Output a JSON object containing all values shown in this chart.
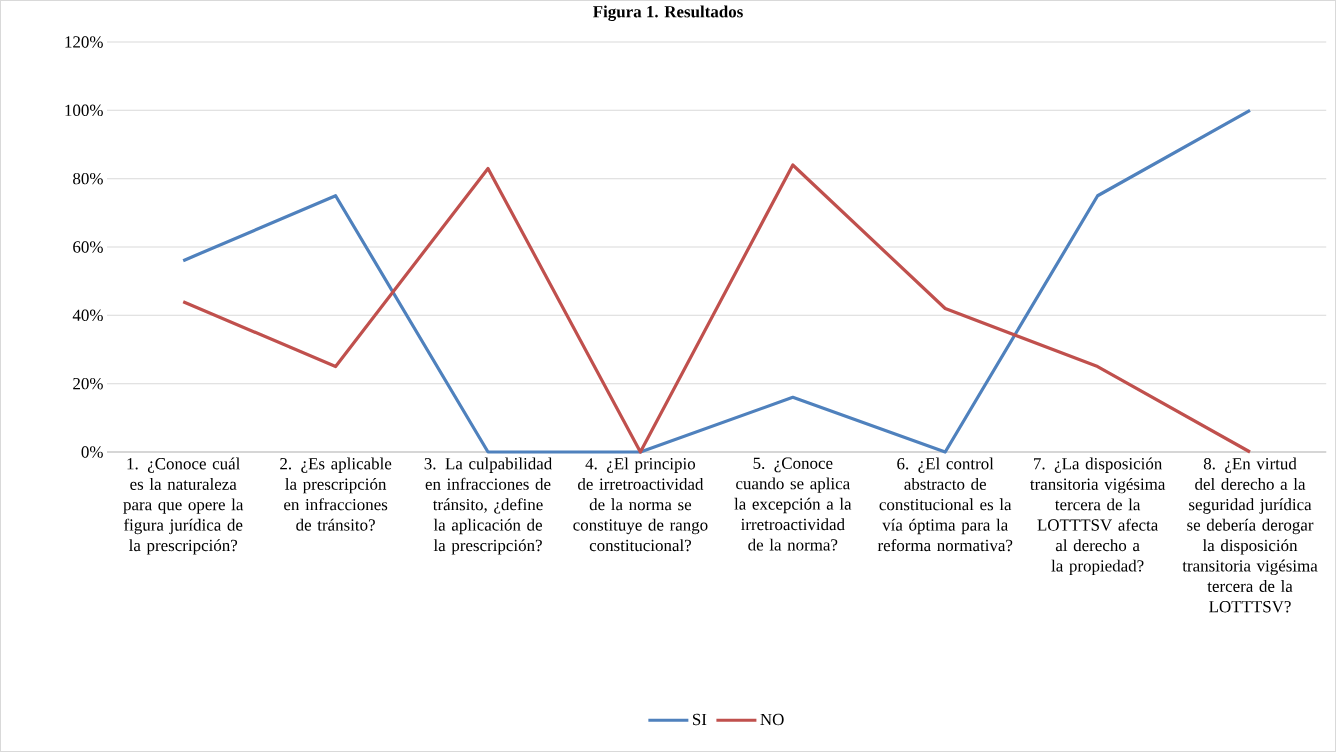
{
  "chart_data": {
    "type": "line",
    "title": "Figura 1. Resultados",
    "categories": [
      "1. ¿Conoce cuál es la naturaleza para que opere la figura jurídica de la prescripción?",
      "2. ¿Es aplicable la prescripción en infracciones de tránsito?",
      "3. La culpabilidad en infracciones de tránsito, ¿define la aplicación de la prescripción?",
      "4. ¿El principio de irretroactividad de la norma se constituye de rango constitucional?",
      "5. ¿Conoce cuando se aplica la excepción a la irretroactividad de la norma?",
      "6. ¿El control abstracto de constitucional es la vía óptima para la reforma normativa?",
      "7. ¿La disposición transitoria vigésima tercera de la LOTTTSV afecta al derecho a la propiedad?",
      "8. ¿En virtud del derecho a la seguridad jurídica se debería derogar la disposición transitoria vigésima tercera de la LOTTTSV?"
    ],
    "series": [
      {
        "name": "SI",
        "color": "#4f81bd",
        "values": [
          56,
          75,
          0,
          0,
          16,
          0,
          75,
          100
        ]
      },
      {
        "name": "NO",
        "color": "#c0504d",
        "values": [
          44,
          25,
          83,
          0,
          84,
          42,
          25,
          0
        ]
      }
    ],
    "ylim": [
      0,
      120
    ],
    "yticks": [
      {
        "value": 0,
        "label": "0%"
      },
      {
        "value": 20,
        "label": "20%"
      },
      {
        "value": 40,
        "label": "40%"
      },
      {
        "value": 60,
        "label": "60%"
      },
      {
        "value": 80,
        "label": "80%"
      },
      {
        "value": 100,
        "label": "100%"
      },
      {
        "value": 120,
        "label": "120%"
      }
    ],
    "grid": "y",
    "legend": "bottom",
    "marker": "none",
    "line_style": "solid"
  }
}
